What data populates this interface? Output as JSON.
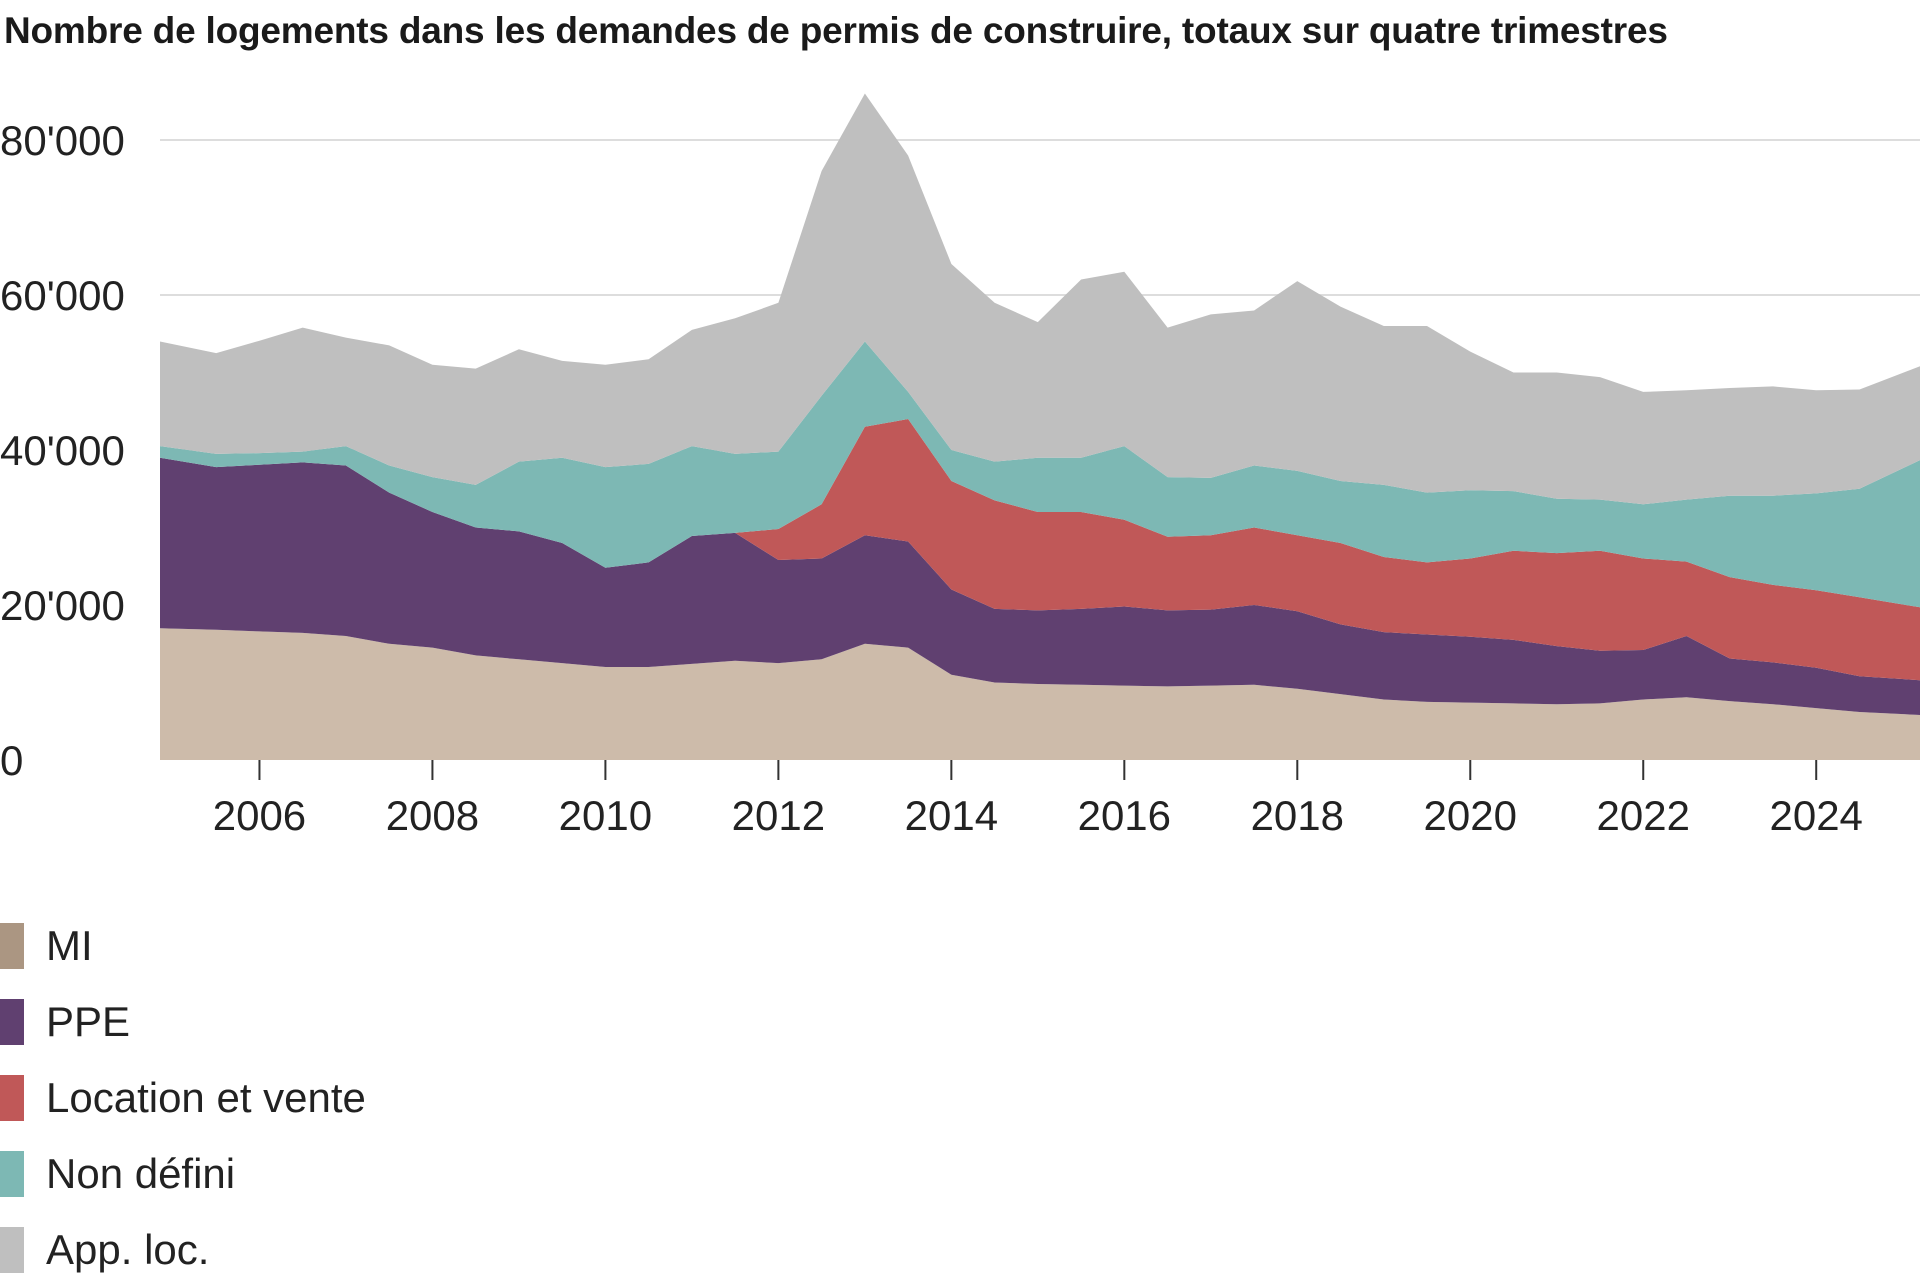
{
  "title": "Nombre de logements dans les demandes de permis de construire, totaux sur quatre trimestres",
  "chart_data": {
    "type": "area",
    "stacked": true,
    "title": "Nombre de logements dans les demandes de permis de construire, totaux sur quatre trimestres",
    "xlabel": "",
    "ylabel": "",
    "xlim": [
      2004.85,
      2025.2
    ],
    "ylim": [
      0,
      80000
    ],
    "y_ticks": [
      0,
      20000,
      40000,
      60000,
      80000
    ],
    "y_tick_labels": [
      "0",
      "20'000",
      "40'000",
      "60'000",
      "80'000"
    ],
    "x_ticks": [
      2006,
      2008,
      2010,
      2012,
      2014,
      2016,
      2018,
      2020,
      2022,
      2024
    ],
    "x_tick_labels": [
      "2006",
      "2008",
      "2010",
      "2012",
      "2014",
      "2016",
      "2018",
      "2020",
      "2022",
      "2024"
    ],
    "grid": "horizontal",
    "legend_position": "bottom-left",
    "x": [
      2005.0,
      2005.5,
      2006.0,
      2006.5,
      2007.0,
      2007.5,
      2008.0,
      2008.5,
      2009.0,
      2009.5,
      2010.0,
      2010.5,
      2011.0,
      2011.5,
      2012.0,
      2012.5,
      2013.0,
      2013.5,
      2014.0,
      2014.5,
      2015.0,
      2015.5,
      2016.0,
      2016.5,
      2017.0,
      2017.5,
      2018.0,
      2018.5,
      2019.0,
      2019.5,
      2020.0,
      2020.5,
      2021.0,
      2021.5,
      2022.0,
      2022.5,
      2023.0,
      2023.5,
      2024.0,
      2024.5,
      2025.0
    ],
    "series": [
      {
        "name": "MI",
        "color": "#cdbbaa",
        "values": [
          17000,
          16800,
          16600,
          16400,
          16000,
          15000,
          14500,
          13500,
          13000,
          12500,
          12000,
          12000,
          12400,
          12800,
          12500,
          13000,
          15000,
          14500,
          11000,
          10000,
          9800,
          9700,
          9600,
          9500,
          9600,
          9700,
          9200,
          8500,
          7800,
          7500,
          7400,
          7300,
          7200,
          7300,
          7800,
          8100,
          7600,
          7200,
          6700,
          6200,
          5800
        ]
      },
      {
        "name": "PPE",
        "color": "#604070",
        "values": [
          22000,
          21000,
          21500,
          22000,
          22000,
          19500,
          17500,
          16500,
          16500,
          15500,
          12800,
          13500,
          16500,
          16500,
          13300,
          13000,
          14000,
          13700,
          11000,
          9500,
          9500,
          9800,
          10200,
          9800,
          9800,
          10300,
          10000,
          9000,
          8700,
          8700,
          8500,
          8200,
          7500,
          6800,
          6400,
          7900,
          5500,
          5400,
          5200,
          4600,
          4500
        ]
      },
      {
        "name": "Location et vente",
        "color": "#c05858",
        "values": [
          0,
          0,
          0,
          0,
          0,
          0,
          0,
          0,
          0,
          0,
          0,
          0,
          0,
          0,
          4000,
          7000,
          14000,
          15800,
          14000,
          14000,
          12700,
          12500,
          11200,
          9500,
          9600,
          10000,
          9800,
          10500,
          9700,
          9300,
          10100,
          11500,
          12000,
          12900,
          11800,
          9600,
          10500,
          10000,
          10000,
          10200,
          9400
        ]
      },
      {
        "name": "Non défini",
        "color": "#7db8b4",
        "values": [
          1500,
          1700,
          1500,
          1400,
          2500,
          3500,
          4500,
          5500,
          9000,
          11000,
          13000,
          12700,
          11600,
          10200,
          10000,
          14000,
          11000,
          3500,
          4000,
          5000,
          7000,
          7000,
          9500,
          7700,
          7400,
          8000,
          8300,
          8000,
          9300,
          9000,
          8800,
          7700,
          7000,
          6600,
          7000,
          8000,
          10500,
          11500,
          12500,
          14000,
          19000
        ]
      },
      {
        "name": "App. loc.",
        "color": "#bfbfbf",
        "values": [
          13500,
          13000,
          14500,
          16000,
          14000,
          15500,
          14500,
          15000,
          14500,
          12500,
          13200,
          13500,
          15000,
          17500,
          19200,
          29000,
          32000,
          30500,
          24000,
          20500,
          17500,
          23000,
          22500,
          19300,
          21100,
          20000,
          24500,
          22500,
          20500,
          21500,
          17900,
          15300,
          16300,
          15800,
          14500,
          14100,
          13900,
          14100,
          13300,
          12800,
          12100
        ]
      }
    ]
  },
  "legend": [
    {
      "label": "MI",
      "color": "#ab9682"
    },
    {
      "label": "PPE",
      "color": "#604070"
    },
    {
      "label": "Location et vente",
      "color": "#c05858"
    },
    {
      "label": "Non défini",
      "color": "#7db8b4"
    },
    {
      "label": "App. loc.",
      "color": "#bfbfbf"
    }
  ]
}
